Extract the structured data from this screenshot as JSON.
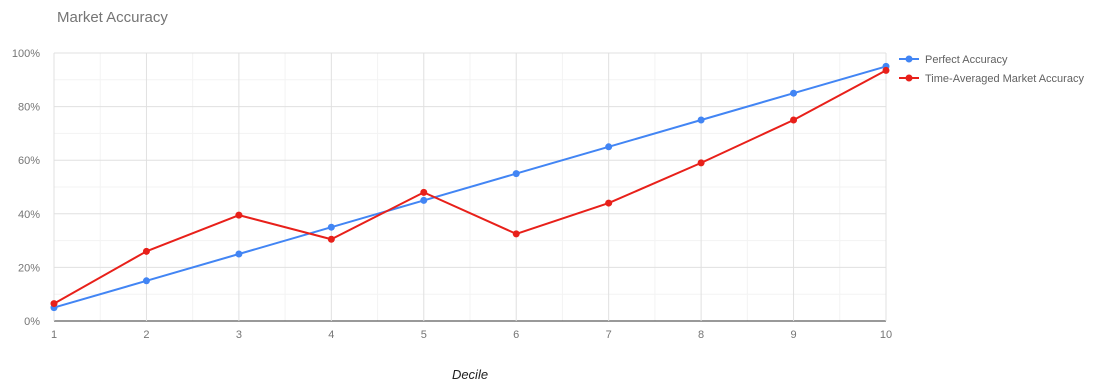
{
  "chart_data": {
    "type": "line",
    "title": "Market Accuracy",
    "xlabel": "Decile",
    "ylabel": "",
    "x": [
      1,
      2,
      3,
      4,
      5,
      6,
      7,
      8,
      9,
      10
    ],
    "xlim": [
      1,
      10
    ],
    "ylim": [
      0,
      100
    ],
    "y_ticks": [
      "0%",
      "20%",
      "40%",
      "60%",
      "80%",
      "100%"
    ],
    "y_tick_values": [
      0,
      20,
      40,
      60,
      80,
      100
    ],
    "x_ticks": [
      "1",
      "2",
      "3",
      "4",
      "5",
      "6",
      "7",
      "8",
      "9",
      "10"
    ],
    "grid": true,
    "legend_position": "right",
    "series": [
      {
        "name": "Perfect Accuracy",
        "color": "#4285f4",
        "values": [
          5,
          15,
          25,
          35,
          45,
          55,
          65,
          75,
          85,
          95
        ]
      },
      {
        "name": "Time-Averaged Market Accuracy",
        "color": "#e8201a",
        "values": [
          6.5,
          26,
          39.5,
          30.5,
          48,
          32.5,
          44,
          59,
          75,
          93.5
        ]
      }
    ]
  }
}
